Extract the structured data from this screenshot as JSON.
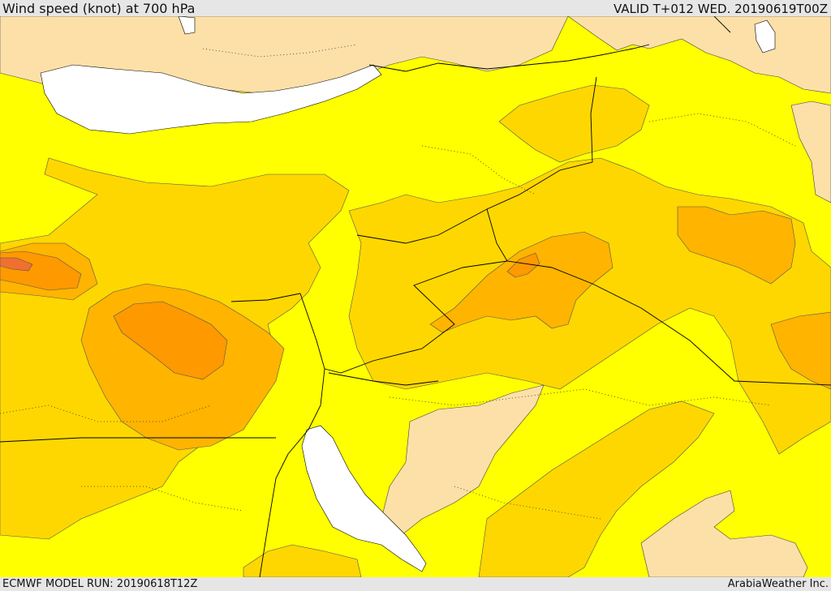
{
  "header": {
    "title": "Wind speed (knot) at 700 hPa",
    "valid": "VALID T+012 WED. 20190619T00Z"
  },
  "footer": {
    "model_run": "ECMWF MODEL RUN: 20190618T12Z",
    "credit": "ArabiaWeather Inc."
  },
  "colors": {
    "calm": "#fde0a8",
    "light": "#ffff00",
    "moderate": "#ffd700",
    "fresh": "#ffb400",
    "strong": "#ff9900",
    "very_strong": "#f07030",
    "water": "#ffffff",
    "border": "#000000"
  }
}
